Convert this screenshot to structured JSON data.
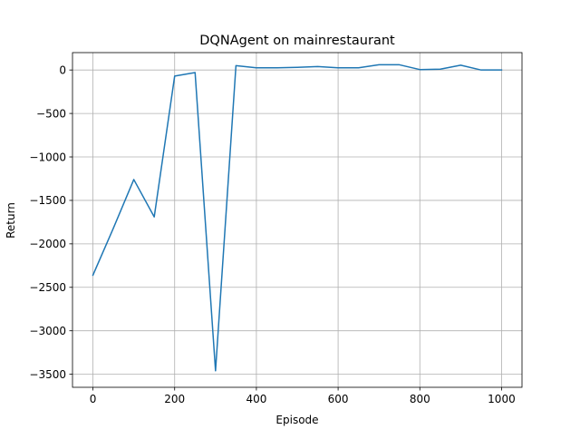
{
  "chart_data": {
    "type": "line",
    "title": "DQNAgent on mainrestaurant",
    "xlabel": "Episode",
    "ylabel": "Return",
    "xlim": [
      -50,
      1050
    ],
    "ylim": [
      -3650,
      200
    ],
    "xticks": [
      0,
      200,
      400,
      600,
      800,
      1000
    ],
    "xtick_labels": [
      "0",
      "200",
      "400",
      "600",
      "800",
      "1000"
    ],
    "yticks": [
      0,
      -500,
      -1000,
      -1500,
      -2000,
      -2500,
      -3000,
      -3500
    ],
    "ytick_labels": [
      "0",
      "−500",
      "−1000",
      "−1500",
      "−2000",
      "−2500",
      "−3000",
      "−3500"
    ],
    "grid": true,
    "series": [
      {
        "color": "#1f77b4",
        "x": [
          0,
          50,
          100,
          150,
          200,
          250,
          300,
          350,
          400,
          450,
          500,
          550,
          600,
          650,
          700,
          750,
          800,
          850,
          900,
          950,
          1000
        ],
        "y": [
          -2360,
          -1820,
          -1260,
          -1690,
          -70,
          -30,
          -3460,
          50,
          25,
          25,
          30,
          40,
          25,
          25,
          60,
          60,
          5,
          10,
          55,
          0,
          0
        ]
      }
    ]
  }
}
